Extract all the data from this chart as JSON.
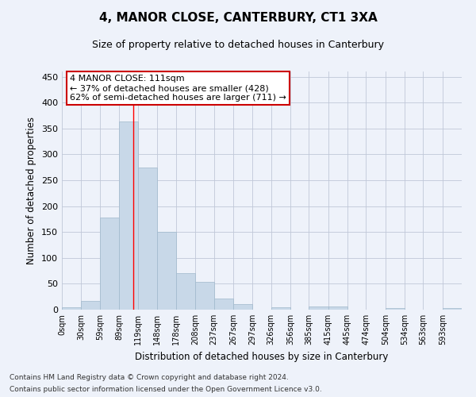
{
  "title": "4, MANOR CLOSE, CANTERBURY, CT1 3XA",
  "subtitle": "Size of property relative to detached houses in Canterbury",
  "xlabel": "Distribution of detached houses by size in Canterbury",
  "ylabel": "Number of detached properties",
  "footnote1": "Contains HM Land Registry data © Crown copyright and database right 2024.",
  "footnote2": "Contains public sector information licensed under the Open Government Licence v3.0.",
  "bar_color": "#c8d8e8",
  "bar_edgecolor": "#a0b8cc",
  "grid_color": "#c0c8d8",
  "background_color": "#eef2fa",
  "annotation_line1": "4 MANOR CLOSE: 111sqm",
  "annotation_line2": "← 37% of detached houses are smaller (428)",
  "annotation_line3": "62% of semi-detached houses are larger (711) →",
  "annotation_box_facecolor": "#ffffff",
  "annotation_box_edgecolor": "#cc0000",
  "redline_x": 111,
  "categories": [
    "0sqm",
    "30sqm",
    "59sqm",
    "89sqm",
    "119sqm",
    "148sqm",
    "178sqm",
    "208sqm",
    "237sqm",
    "267sqm",
    "297sqm",
    "326sqm",
    "356sqm",
    "385sqm",
    "415sqm",
    "445sqm",
    "474sqm",
    "504sqm",
    "534sqm",
    "563sqm",
    "593sqm"
  ],
  "bin_edges": [
    0,
    30,
    59,
    89,
    119,
    148,
    178,
    208,
    237,
    267,
    297,
    326,
    356,
    385,
    415,
    445,
    474,
    504,
    534,
    563,
    593,
    623
  ],
  "values": [
    4,
    17,
    178,
    364,
    274,
    151,
    70,
    54,
    22,
    10,
    0,
    5,
    0,
    6,
    6,
    0,
    0,
    3,
    0,
    0,
    3
  ],
  "ylim": [
    0,
    460
  ],
  "yticks": [
    0,
    50,
    100,
    150,
    200,
    250,
    300,
    350,
    400,
    450
  ]
}
